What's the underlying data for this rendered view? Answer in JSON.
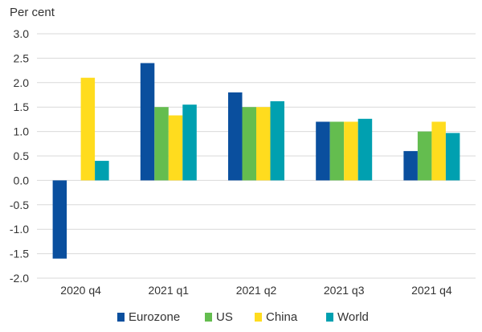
{
  "chart_data": {
    "type": "bar",
    "title": "",
    "unit_label": "Per cent",
    "xlabel": "",
    "ylabel": "Per cent",
    "ylim": [
      -2.0,
      3.0
    ],
    "y_ticks": [
      "3.0",
      "2.5",
      "2.0",
      "1.5",
      "1.0",
      "0.5",
      "0.0",
      "-0.5",
      "-1.0",
      "-1.5",
      "-2.0"
    ],
    "y_tick_values": [
      3.0,
      2.5,
      2.0,
      1.5,
      1.0,
      0.5,
      0.0,
      -0.5,
      -1.0,
      -1.5,
      -2.0
    ],
    "grid": true,
    "legend_position": "bottom",
    "categories": [
      "2020 q4",
      "2021 q1",
      "2021 q2",
      "2021 q3",
      "2021 q4"
    ],
    "series": [
      {
        "name": "Eurozone",
        "color": "#0a4f9e",
        "values": [
          -1.6,
          2.4,
          1.8,
          1.2,
          0.6
        ]
      },
      {
        "name": "US",
        "color": "#64bd4f",
        "values": [
          0.0,
          1.5,
          1.5,
          1.2,
          1.0
        ]
      },
      {
        "name": "China",
        "color": "#ffdc1e",
        "values": [
          2.1,
          1.33,
          1.5,
          1.2,
          1.2
        ]
      },
      {
        "name": "World",
        "color": "#00a0b0",
        "values": [
          0.4,
          1.55,
          1.62,
          1.26,
          0.97
        ]
      }
    ]
  }
}
